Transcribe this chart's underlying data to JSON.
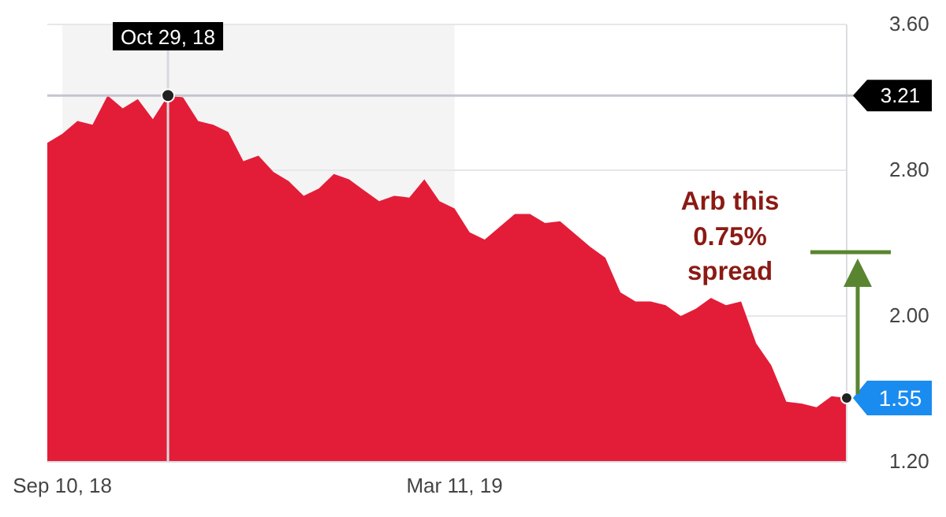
{
  "chart_data": {
    "type": "area",
    "x": [
      "2018-09-03",
      "2018-09-10",
      "2018-09-17",
      "2018-09-24",
      "2018-10-01",
      "2018-10-08",
      "2018-10-15",
      "2018-10-22",
      "2018-10-29",
      "2018-11-05",
      "2018-11-12",
      "2018-11-19",
      "2018-11-26",
      "2018-12-03",
      "2018-12-10",
      "2018-12-17",
      "2018-12-24",
      "2018-12-31",
      "2019-01-07",
      "2019-01-14",
      "2019-01-21",
      "2019-01-28",
      "2019-02-04",
      "2019-02-11",
      "2019-02-18",
      "2019-02-25",
      "2019-03-04",
      "2019-03-11",
      "2019-03-18",
      "2019-03-25",
      "2019-04-01",
      "2019-04-08",
      "2019-04-15",
      "2019-04-22",
      "2019-04-29",
      "2019-05-06",
      "2019-05-13",
      "2019-05-20",
      "2019-05-27",
      "2019-06-03",
      "2019-06-10",
      "2019-06-17",
      "2019-06-24",
      "2019-07-01",
      "2019-07-08",
      "2019-07-15",
      "2019-07-22",
      "2019-07-29",
      "2019-08-05",
      "2019-08-12",
      "2019-08-19",
      "2019-08-26",
      "2019-09-02",
      "2019-09-09"
    ],
    "series": [
      {
        "color": "#e31d38",
        "values": [
          2.95,
          3.0,
          3.07,
          3.05,
          3.21,
          3.14,
          3.19,
          3.08,
          3.21,
          3.2,
          3.07,
          3.05,
          3.01,
          2.85,
          2.88,
          2.79,
          2.74,
          2.66,
          2.7,
          2.78,
          2.75,
          2.69,
          2.63,
          2.66,
          2.65,
          2.75,
          2.63,
          2.59,
          2.46,
          2.42,
          2.49,
          2.56,
          2.56,
          2.51,
          2.52,
          2.45,
          2.38,
          2.32,
          2.13,
          2.08,
          2.08,
          2.06,
          2.0,
          2.04,
          2.1,
          2.06,
          2.08,
          1.85,
          1.73,
          1.53,
          1.52,
          1.5,
          1.56,
          1.55
        ]
      }
    ],
    "xlim": [
      "2018-09-03",
      "2019-09-09"
    ],
    "xticks": [
      {
        "value": "2018-09-10",
        "label": "Sep 10, 18"
      },
      {
        "value": "2019-03-11",
        "label": "Mar 11, 19"
      }
    ],
    "ylim": [
      1.2,
      3.6
    ],
    "yticks": [
      {
        "value": 1.2,
        "label": "1.20"
      },
      {
        "value": 2.0,
        "label": "2.00"
      },
      {
        "value": 2.8,
        "label": "2.80"
      },
      {
        "value": 3.6,
        "label": "3.60"
      }
    ],
    "grid": "y",
    "bands": [
      {
        "axis": "x",
        "from": "2018-09-10",
        "to": "2019-03-11",
        "color": "#f4f4f4"
      }
    ],
    "ref_lines": [
      {
        "axis": "y",
        "value": 3.21,
        "label": "3.21",
        "color": "#c3c6cf"
      },
      {
        "axis": "x",
        "value": "2018-10-29",
        "label": "Oct 29, 18",
        "color": "#d7d9df"
      }
    ],
    "annotations": [
      {
        "text": "1.55",
        "x": "2019-09-09",
        "y": 1.55
      },
      "Arb this 0.75% spread"
    ]
  }
}
